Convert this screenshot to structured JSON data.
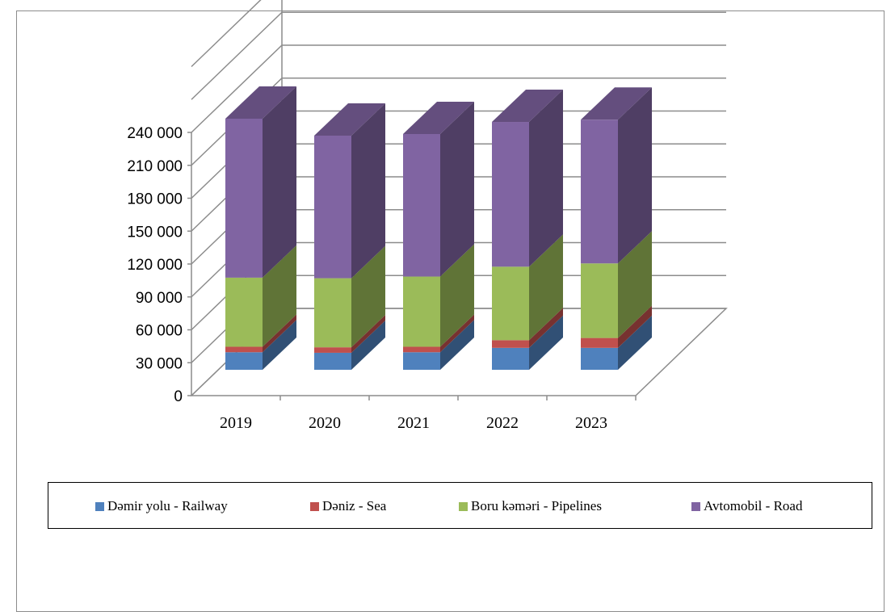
{
  "chart_data": {
    "type": "bar",
    "stacked": true,
    "three_d": true,
    "categories": [
      "2019",
      "2020",
      "2021",
      "2022",
      "2023"
    ],
    "series": [
      {
        "name": "Dəmir yolu - Railway",
        "color": "#4F81BD",
        "values": [
          16000,
          15500,
          16000,
          20000,
          20000
        ]
      },
      {
        "name": "Dəniz - Sea",
        "color": "#C0504D",
        "values": [
          5000,
          5000,
          5000,
          7000,
          9000
        ]
      },
      {
        "name": "Boru kəməri - Pipelines",
        "color": "#9BBB59",
        "values": [
          63000,
          63000,
          64000,
          67000,
          68000
        ]
      },
      {
        "name": "Avtomobil - Road",
        "color": "#8064A2",
        "values": [
          145000,
          130000,
          130000,
          132000,
          131000
        ]
      }
    ],
    "ylim": [
      0,
      240000
    ],
    "yticks": [
      "0",
      "30 000",
      "60 000",
      "90 000",
      "120 000",
      "150 000",
      "180 000",
      "210 000",
      "240 000"
    ],
    "grid": true,
    "legend_position": "bottom"
  }
}
